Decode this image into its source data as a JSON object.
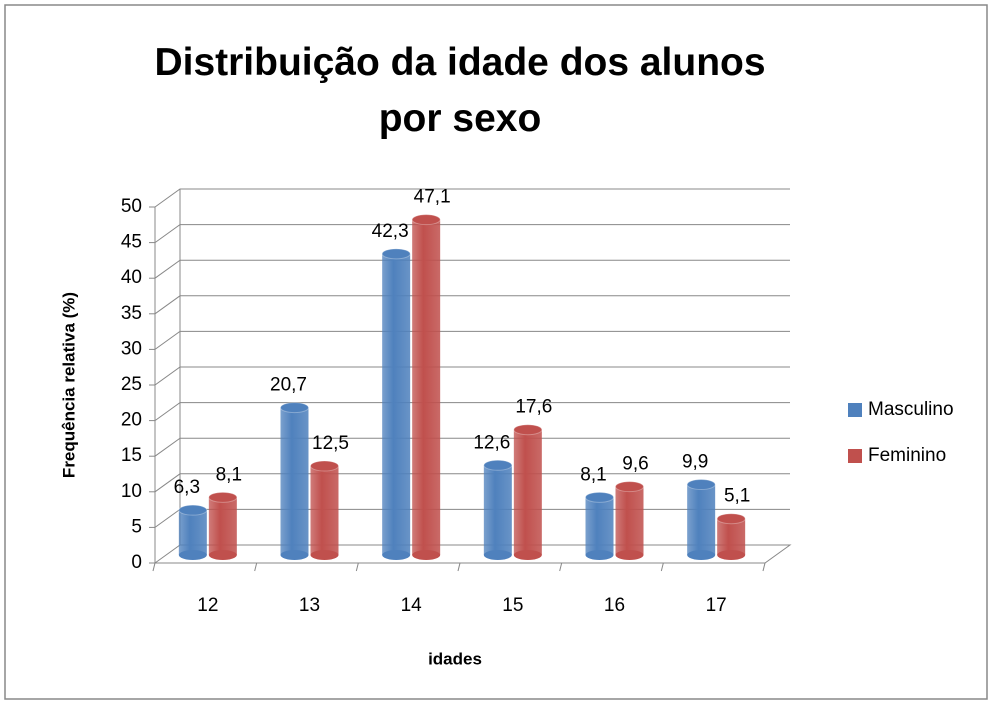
{
  "chart_data": {
    "type": "bar3d",
    "title": "Distribuição da idade dos alunos por sexo",
    "x_label": "idades",
    "y_label": "Frequência relativa (%)",
    "categories": [
      "12",
      "13",
      "14",
      "15",
      "16",
      "17"
    ],
    "series": [
      {
        "name": "Masculino",
        "color": "#4f81bd",
        "values": [
          6.3,
          20.7,
          42.3,
          12.6,
          8.1,
          9.9
        ],
        "value_labels": [
          "6,3",
          "20,7",
          "42,3",
          "12,6",
          "8,1",
          "9,9"
        ]
      },
      {
        "name": "Feminino",
        "color": "#c0504d",
        "values": [
          8.1,
          12.5,
          47.1,
          17.6,
          9.6,
          5.1
        ],
        "value_labels": [
          "8,1",
          "12,5",
          "47,1",
          "17,6",
          "9,6",
          "5,1"
        ]
      }
    ],
    "ylim": [
      0,
      50
    ],
    "yticks": [
      0,
      5,
      10,
      15,
      20,
      25,
      30,
      35,
      40,
      45,
      50
    ],
    "grid": true,
    "legend": "right"
  }
}
